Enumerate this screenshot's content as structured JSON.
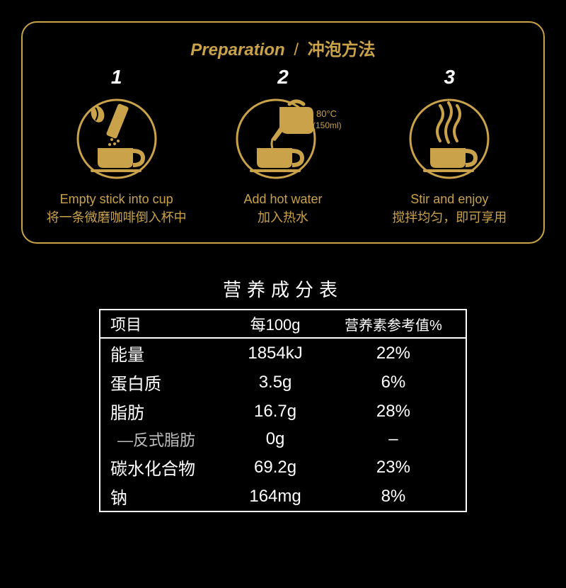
{
  "panel": {
    "title_en": "Preparation",
    "title_sep": "/",
    "title_zh": "冲泡方法",
    "border_color": "#c9a24a",
    "text_gold": "#c9a24a",
    "steps": [
      {
        "num": "1",
        "caption_en": "Empty stick into cup",
        "caption_zh": "将一条微磨咖啡倒入杯中",
        "icon": "pour-stick"
      },
      {
        "num": "2",
        "caption_en": "Add hot water",
        "caption_zh": "加入热水",
        "icon": "add-water",
        "icon_label_temp": "80°C",
        "icon_label_vol": "(150ml)"
      },
      {
        "num": "3",
        "caption_en": "Stir and enjoy",
        "caption_zh": "搅拌均匀，即可享用",
        "icon": "stir"
      }
    ]
  },
  "nutrition": {
    "title": "营养成分表",
    "columns": [
      "项目",
      "每100g",
      "营养素参考值%"
    ],
    "rows": [
      {
        "name": "能量",
        "per100g": "1854kJ",
        "nrv": "22%",
        "indent": false
      },
      {
        "name": "蛋白质",
        "per100g": "3.5g",
        "nrv": "6%",
        "indent": false
      },
      {
        "name": "脂肪",
        "per100g": "16.7g",
        "nrv": "28%",
        "indent": false
      },
      {
        "name": "—反式脂肪",
        "per100g": "0g",
        "nrv": "–",
        "indent": true
      },
      {
        "name": "碳水化合物",
        "per100g": "69.2g",
        "nrv": "23%",
        "indent": false
      },
      {
        "name": "钠",
        "per100g": "164mg",
        "nrv": "8%",
        "indent": false
      }
    ],
    "font_size": 24,
    "border_color": "#ffffff"
  },
  "background_color": "#000000"
}
